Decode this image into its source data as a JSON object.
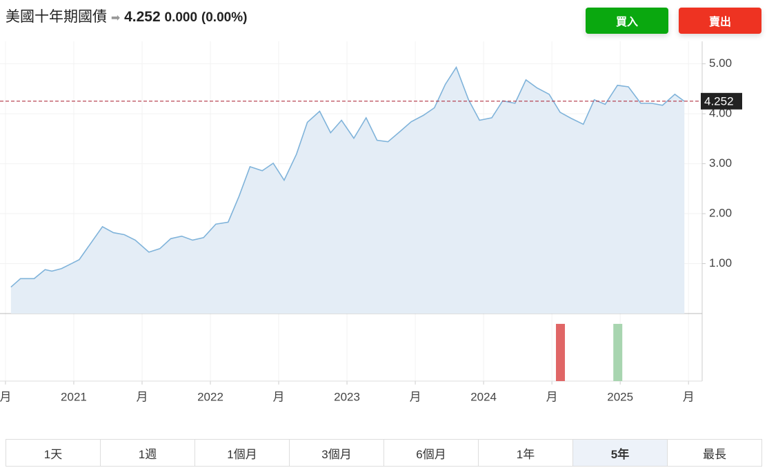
{
  "header": {
    "title": "美國十年期國債",
    "price": "4.252",
    "change": "0.000",
    "change_pct": "(0.00%)"
  },
  "buttons": {
    "buy": "買入",
    "sell": "賣出"
  },
  "chart_data": {
    "type": "area",
    "x": [
      2020.54,
      2020.61,
      2020.71,
      2020.79,
      2020.84,
      2020.91,
      2020.99,
      2021.04,
      2021.21,
      2021.29,
      2021.37,
      2021.45,
      2021.55,
      2021.63,
      2021.71,
      2021.79,
      2021.87,
      2021.95,
      2022.04,
      2022.13,
      2022.21,
      2022.29,
      2022.38,
      2022.46,
      2022.54,
      2022.63,
      2022.71,
      2022.8,
      2022.88,
      2022.96,
      2023.05,
      2023.14,
      2023.22,
      2023.3,
      2023.39,
      2023.47,
      2023.56,
      2023.64,
      2023.72,
      2023.8,
      2023.89,
      2023.97,
      2024.06,
      2024.14,
      2024.23,
      2024.31,
      2024.39,
      2024.48,
      2024.56,
      2024.64,
      2024.73,
      2024.81,
      2024.89,
      2024.98,
      2025.06,
      2025.15,
      2025.23,
      2025.31,
      2025.4,
      2025.47
    ],
    "series": [
      {
        "color": "#7fb3da",
        "values": [
          0.53,
          0.7,
          0.7,
          0.88,
          0.85,
          0.9,
          1.01,
          1.08,
          1.74,
          1.62,
          1.58,
          1.47,
          1.23,
          1.3,
          1.5,
          1.55,
          1.47,
          1.52,
          1.79,
          1.83,
          2.35,
          2.94,
          2.86,
          3.01,
          2.67,
          3.19,
          3.83,
          4.05,
          3.62,
          3.87,
          3.51,
          3.92,
          3.47,
          3.44,
          3.65,
          3.84,
          3.97,
          4.12,
          4.59,
          4.93,
          4.28,
          3.87,
          3.92,
          4.26,
          4.21,
          4.68,
          4.52,
          4.39,
          4.03,
          3.91,
          3.79,
          4.28,
          4.19,
          4.57,
          4.54,
          4.21,
          4.21,
          4.17,
          4.39,
          4.25
        ]
      }
    ],
    "last_value": 4.252,
    "xlim": [
      2020.46,
      2025.6
    ],
    "xticks": [
      {
        "value": 2020.5,
        "label": "月"
      },
      2021,
      {
        "value": 2021.5,
        "label": "月"
      },
      2022,
      {
        "value": 2022.5,
        "label": "月"
      },
      2023,
      {
        "value": 2023.5,
        "label": "月"
      },
      2024,
      {
        "value": 2024.5,
        "label": "月"
      },
      2025,
      {
        "value": 2025.5,
        "label": "月"
      }
    ],
    "ylim": [
      0,
      5.45
    ],
    "yticks": [
      {
        "value": 1,
        "label": "1.00"
      },
      {
        "value": 2,
        "label": "2.00"
      },
      {
        "value": 3,
        "label": "3.00"
      },
      {
        "value": 4,
        "label": "4.00"
      },
      {
        "value": 5,
        "label": "5.00"
      }
    ],
    "grid": true,
    "events": {
      "x": [
        2024.56,
        2024.98
      ],
      "values": [
        1,
        1
      ],
      "colors": [
        "#e06666",
        "#a8d5b0"
      ],
      "ylim": [
        0,
        1.18
      ]
    }
  },
  "tabs": [
    "1天",
    "1週",
    "1個月",
    "3個月",
    "6個月",
    "1年",
    "5年",
    "最長"
  ],
  "selected_tab": 6
}
